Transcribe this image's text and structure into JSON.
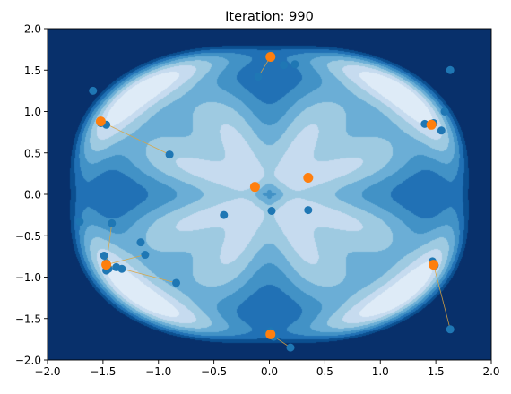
{
  "chart_data": {
    "type": "scatter",
    "title": "Iteration: 990",
    "xlabel": "",
    "ylabel": "",
    "xlim": [
      -2.0,
      2.0
    ],
    "ylim": [
      -2.0,
      2.0
    ],
    "x_ticks": [
      "−2.0",
      "−1.5",
      "−1.0",
      "−0.5",
      "0.0",
      "0.5",
      "1.0",
      "1.5",
      "2.0"
    ],
    "y_ticks": [
      "−2.0",
      "−1.5",
      "−1.0",
      "−0.5",
      "0.0",
      "0.5",
      "1.0",
      "1.5",
      "2.0"
    ],
    "background": {
      "type": "filled-contour",
      "colormap": "Blues",
      "description": "radially increasing objective with 8 low-valued basins arranged symmetrically"
    },
    "blue_points": [
      {
        "x": 0.01,
        "y": 1.65
      },
      {
        "x": 0.13,
        "y": 1.56
      },
      {
        "x": 0.23,
        "y": 1.57
      },
      {
        "x": -0.1,
        "y": 1.42
      },
      {
        "x": 1.63,
        "y": 1.5
      },
      {
        "x": 1.58,
        "y": 1.0
      },
      {
        "x": 1.4,
        "y": 0.85
      },
      {
        "x": 1.48,
        "y": 0.86
      },
      {
        "x": 1.46,
        "y": 0.84
      },
      {
        "x": 1.55,
        "y": 0.77
      },
      {
        "x": -1.59,
        "y": 1.25
      },
      {
        "x": -1.52,
        "y": 0.86
      },
      {
        "x": -1.47,
        "y": 0.84
      },
      {
        "x": -0.9,
        "y": 0.48
      },
      {
        "x": -1.71,
        "y": -0.33
      },
      {
        "x": -1.42,
        "y": -0.35
      },
      {
        "x": -1.16,
        "y": -0.58
      },
      {
        "x": -1.49,
        "y": -0.74
      },
      {
        "x": -1.12,
        "y": -0.73
      },
      {
        "x": -1.47,
        "y": -0.83
      },
      {
        "x": -1.45,
        "y": -0.9
      },
      {
        "x": -1.47,
        "y": -0.92
      },
      {
        "x": -1.38,
        "y": -0.88
      },
      {
        "x": -1.33,
        "y": -0.9
      },
      {
        "x": -0.84,
        "y": -1.07
      },
      {
        "x": -0.41,
        "y": -0.25
      },
      {
        "x": 0.02,
        "y": -0.2
      },
      {
        "x": 0.35,
        "y": -0.19
      },
      {
        "x": 1.47,
        "y": -0.81
      },
      {
        "x": 1.49,
        "y": -0.86
      },
      {
        "x": 1.63,
        "y": -1.63
      },
      {
        "x": 0.01,
        "y": -1.65
      },
      {
        "x": 0.04,
        "y": -1.72
      },
      {
        "x": 0.19,
        "y": -1.85
      },
      {
        "x": -0.02,
        "y": -1.68
      }
    ],
    "orange_points": [
      {
        "x": 0.01,
        "y": 1.66
      },
      {
        "x": 1.46,
        "y": 0.84
      },
      {
        "x": -1.52,
        "y": 0.88
      },
      {
        "x": 0.35,
        "y": 0.2
      },
      {
        "x": -0.13,
        "y": 0.09
      },
      {
        "x": -1.47,
        "y": -0.85
      },
      {
        "x": 1.48,
        "y": -0.85
      },
      {
        "x": 0.01,
        "y": -1.69
      }
    ],
    "trails": [
      [
        [
          0.01,
          1.66
        ],
        [
          -0.1,
          1.42
        ]
      ],
      [
        [
          1.46,
          0.84
        ],
        [
          1.4,
          0.85
        ]
      ],
      [
        [
          -1.52,
          0.88
        ],
        [
          -0.9,
          0.48
        ]
      ],
      [
        [
          -1.47,
          -0.85
        ],
        [
          -1.42,
          -0.35
        ]
      ],
      [
        [
          -1.47,
          -0.85
        ],
        [
          -0.84,
          -1.07
        ]
      ],
      [
        [
          -1.47,
          -0.85
        ],
        [
          -1.12,
          -0.73
        ]
      ],
      [
        [
          1.48,
          -0.85
        ],
        [
          1.63,
          -1.63
        ]
      ],
      [
        [
          0.01,
          -1.69
        ],
        [
          0.19,
          -1.85
        ]
      ]
    ],
    "colors": {
      "blue_point": "#1f77b4",
      "orange_point": "#ff7f0e",
      "trail": "#d9a441",
      "contour_levels": [
        "#08306b",
        "#0b4f90",
        "#2171b5",
        "#4292c6",
        "#6baed6",
        "#9ecae1",
        "#c6dbef",
        "#deebf7"
      ]
    },
    "grid": false,
    "legend": "none"
  }
}
